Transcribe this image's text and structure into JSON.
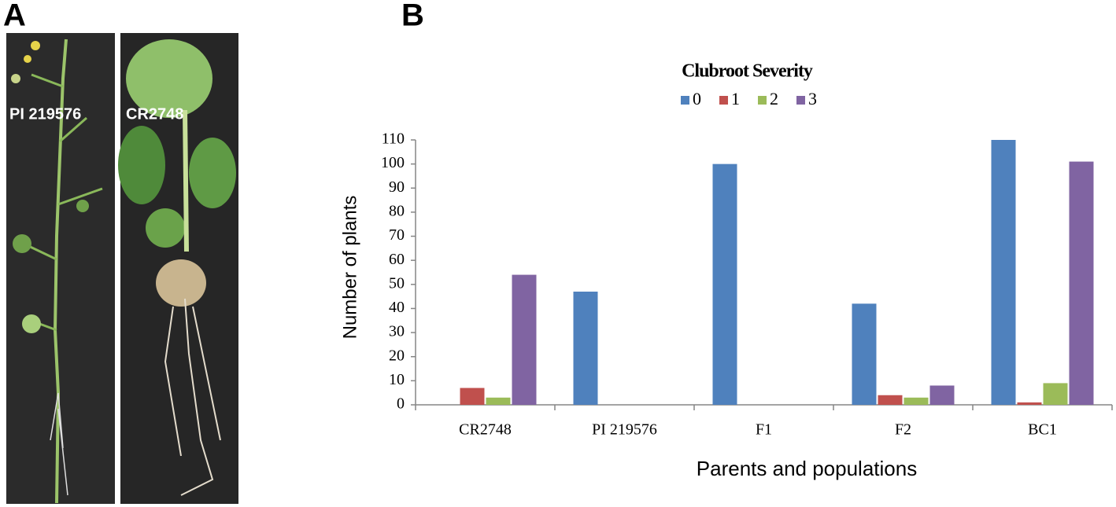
{
  "figure": {
    "panel_a": {
      "label": "A",
      "photos": [
        "PI 219576",
        "CR2748"
      ]
    },
    "panel_b_label": "B"
  },
  "chart_data": {
    "type": "bar",
    "legend_title": "Clubroot Severity",
    "x_label": "Parents and populations",
    "y_label": "Number of plants",
    "categories": [
      "CR2748",
      "PI 219576",
      "F1",
      "F2",
      "BC1"
    ],
    "series": [
      {
        "name": "0",
        "color": "#4f81bd",
        "values": [
          0,
          47,
          100,
          42,
          110
        ]
      },
      {
        "name": "1",
        "color": "#c0504d",
        "values": [
          7,
          0,
          0,
          4,
          1
        ]
      },
      {
        "name": "2",
        "color": "#9bbb59",
        "values": [
          3,
          0,
          0,
          3,
          9
        ]
      },
      {
        "name": "3",
        "color": "#8064a2",
        "values": [
          54,
          0,
          0,
          8,
          101
        ]
      }
    ],
    "ylim": [
      0,
      110
    ],
    "yticks": [
      0,
      10,
      20,
      30,
      40,
      50,
      60,
      70,
      80,
      90,
      100,
      110
    ],
    "grid": false,
    "legend": "top"
  }
}
